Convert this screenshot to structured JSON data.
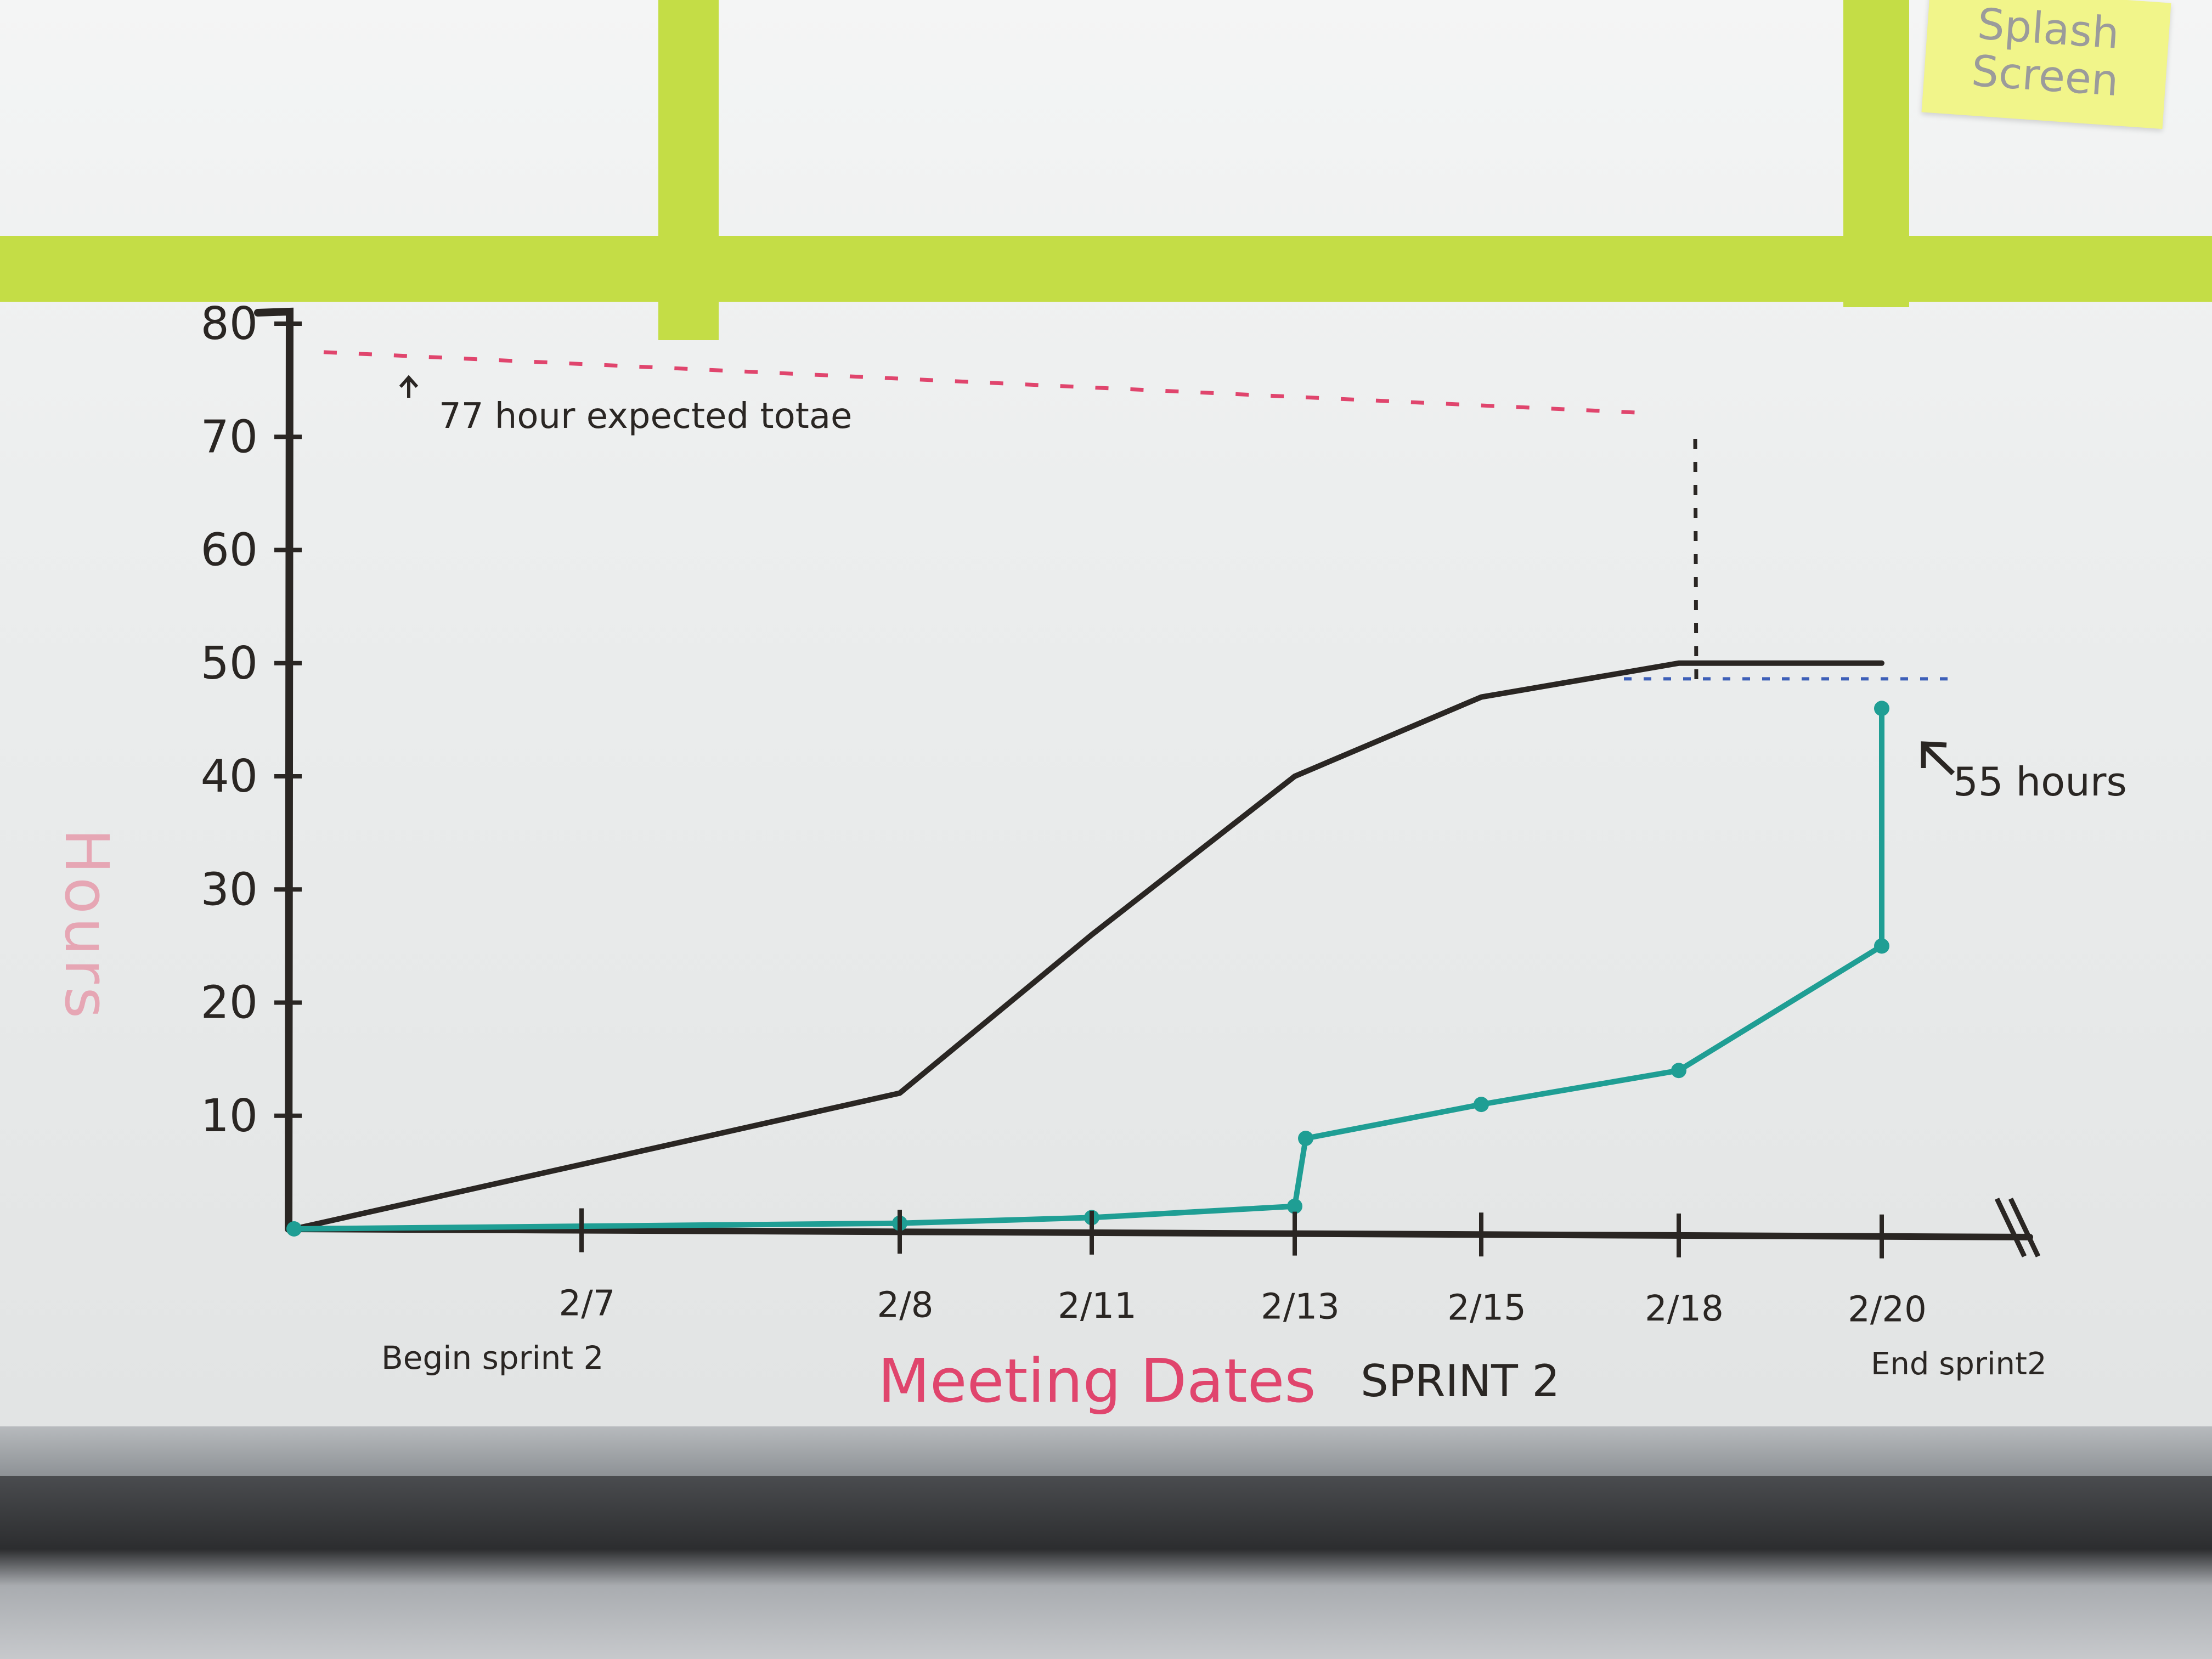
{
  "sticky_note": {
    "text": "Splash Screen"
  },
  "chart_data": {
    "type": "line",
    "title": "",
    "ylabel": "Hours",
    "xlabel": "Meeting Dates",
    "xlabel_suffix": "SPRINT 2",
    "ylim": [
      0,
      80
    ],
    "y_ticks": [
      10,
      20,
      30,
      40,
      50,
      60,
      70,
      80
    ],
    "y_tick_labels": [
      "10",
      "20",
      "30",
      "40",
      "50",
      "60",
      "70",
      "80"
    ],
    "x_categories": [
      "2/7",
      "2/8",
      "2/11",
      "2/13",
      "2/15",
      "2/18",
      "2/20"
    ],
    "x_annotations": {
      "start": "Begin sprint 2",
      "end": "End sprint2"
    },
    "series": [
      {
        "color": "#2a2623",
        "x": [
          0,
          1,
          2,
          3,
          4,
          5,
          6,
          6.3
        ],
        "values": [
          0,
          12,
          26,
          40,
          47,
          50,
          50,
          50
        ]
      },
      {
        "color": "#1f9e94",
        "x": [
          0,
          1,
          2,
          3,
          3.0,
          4,
          5,
          6,
          6.3
        ],
        "values": [
          0,
          0.5,
          1,
          2,
          8,
          11,
          14,
          25,
          46
        ]
      }
    ],
    "reference_line": {
      "value": 77,
      "color": "#e0456d",
      "label": "77 hour expected totae"
    },
    "target_line": {
      "value": 49,
      "color": "#3d5fb8"
    },
    "annotation_end": "55 hours"
  }
}
